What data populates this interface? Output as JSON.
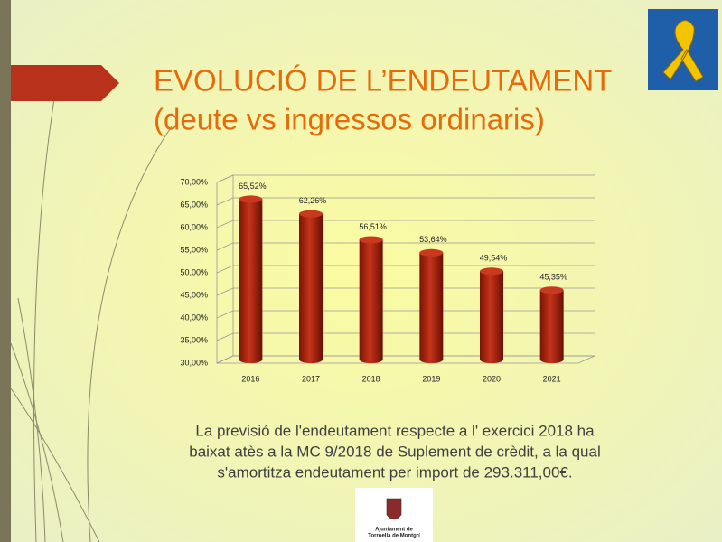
{
  "chart_data": {
    "type": "bar",
    "title": "EVOLUCIÓ DE L’ENDEUTAMENT",
    "subtitle": "(deute vs ingressos ordinaris)",
    "categories": [
      "2016",
      "2017",
      "2018",
      "2019",
      "2020",
      "2021"
    ],
    "values": [
      65.52,
      62.26,
      56.51,
      53.64,
      49.54,
      45.35
    ],
    "value_labels": [
      "65,52%",
      "62,26%",
      "56,51%",
      "53,64%",
      "49,54%",
      "45,35%"
    ],
    "color": "#b22a10",
    "ylim": [
      30,
      70
    ],
    "yticks": [
      {
        "value": 30,
        "label": "30,00%"
      },
      {
        "value": 35,
        "label": "35,00%"
      },
      {
        "value": 40,
        "label": "40,00%"
      },
      {
        "value": 45,
        "label": "45,00%"
      },
      {
        "value": 50,
        "label": "50,00%"
      },
      {
        "value": 55,
        "label": "55,00%"
      },
      {
        "value": 60,
        "label": "60,00%"
      },
      {
        "value": 65,
        "label": "65,00%"
      },
      {
        "value": 70,
        "label": "70,00%"
      }
    ],
    "grid": true
  },
  "caption": [
    "La previsió de l'endeutament respecte a l' exercici 2018 ha",
    "baixat atès a la MC 9/2018 de Suplement de crèdit, a la qual",
    "s'amortitza endeutament per import de 293.311,00€."
  ],
  "logo": [
    "Ajuntament de",
    "Torroella de Montgrí"
  ]
}
